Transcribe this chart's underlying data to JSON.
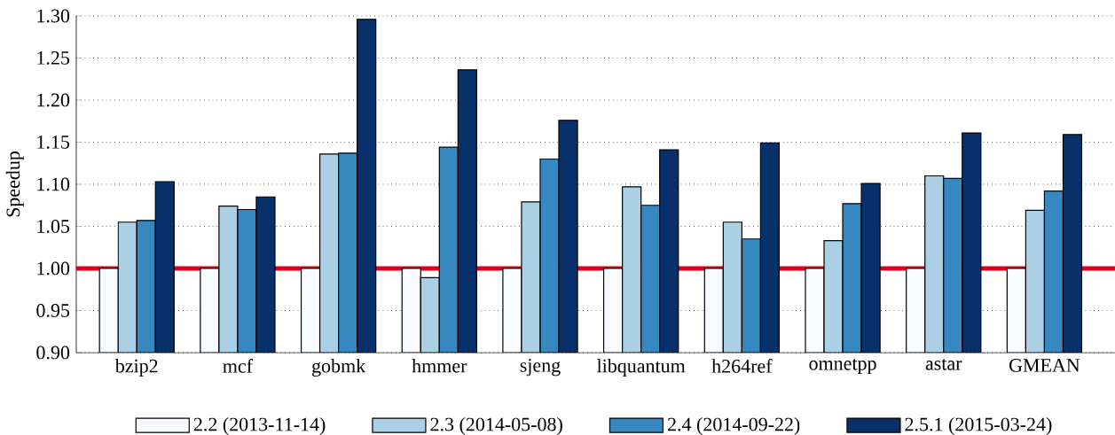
{
  "chart_data": {
    "type": "bar",
    "ylabel": "Speedup",
    "categories": [
      "bzip2",
      "mcf",
      "gobmk",
      "hmmer",
      "sjeng",
      "libquantum",
      "h264ref",
      "omnetpp",
      "astar",
      "GMEAN"
    ],
    "series": [
      {
        "name": "2.2 (2013-11-14)",
        "color": "#f7fbff",
        "values": [
          1.0,
          1.0,
          1.0,
          1.0,
          1.0,
          1.0,
          1.0,
          1.0,
          1.0,
          1.0
        ]
      },
      {
        "name": "2.3 (2014-05-08)",
        "color": "#abd0e6",
        "values": [
          1.055,
          1.074,
          1.136,
          0.989,
          1.079,
          1.097,
          1.055,
          1.033,
          1.11,
          1.069
        ]
      },
      {
        "name": "2.4 (2014-09-22)",
        "color": "#3787c0",
        "values": [
          1.057,
          1.07,
          1.137,
          1.144,
          1.13,
          1.075,
          1.035,
          1.077,
          1.107,
          1.092
        ]
      },
      {
        "name": "2.5.1 (2015-03-24)",
        "color": "#08306b",
        "values": [
          1.103,
          1.085,
          1.296,
          1.236,
          1.176,
          1.141,
          1.149,
          1.101,
          1.161,
          1.159
        ]
      }
    ],
    "ylim": [
      0.9,
      1.3
    ],
    "yticks": [
      {
        "value": 0.9,
        "label": "0.90"
      },
      {
        "value": 0.95,
        "label": "0.95"
      },
      {
        "value": 1.0,
        "label": "1.00"
      },
      {
        "value": 1.05,
        "label": "1.05"
      },
      {
        "value": 1.1,
        "label": "1.10"
      },
      {
        "value": 1.15,
        "label": "1.15"
      },
      {
        "value": 1.2,
        "label": "1.20"
      },
      {
        "value": 1.25,
        "label": "1.25"
      },
      {
        "value": 1.3,
        "label": "1.30"
      }
    ],
    "grid": "y",
    "legend": "bottom",
    "ref_lines": [
      {
        "axis": "y",
        "value": 1.0,
        "color": "#e0001b"
      }
    ]
  }
}
